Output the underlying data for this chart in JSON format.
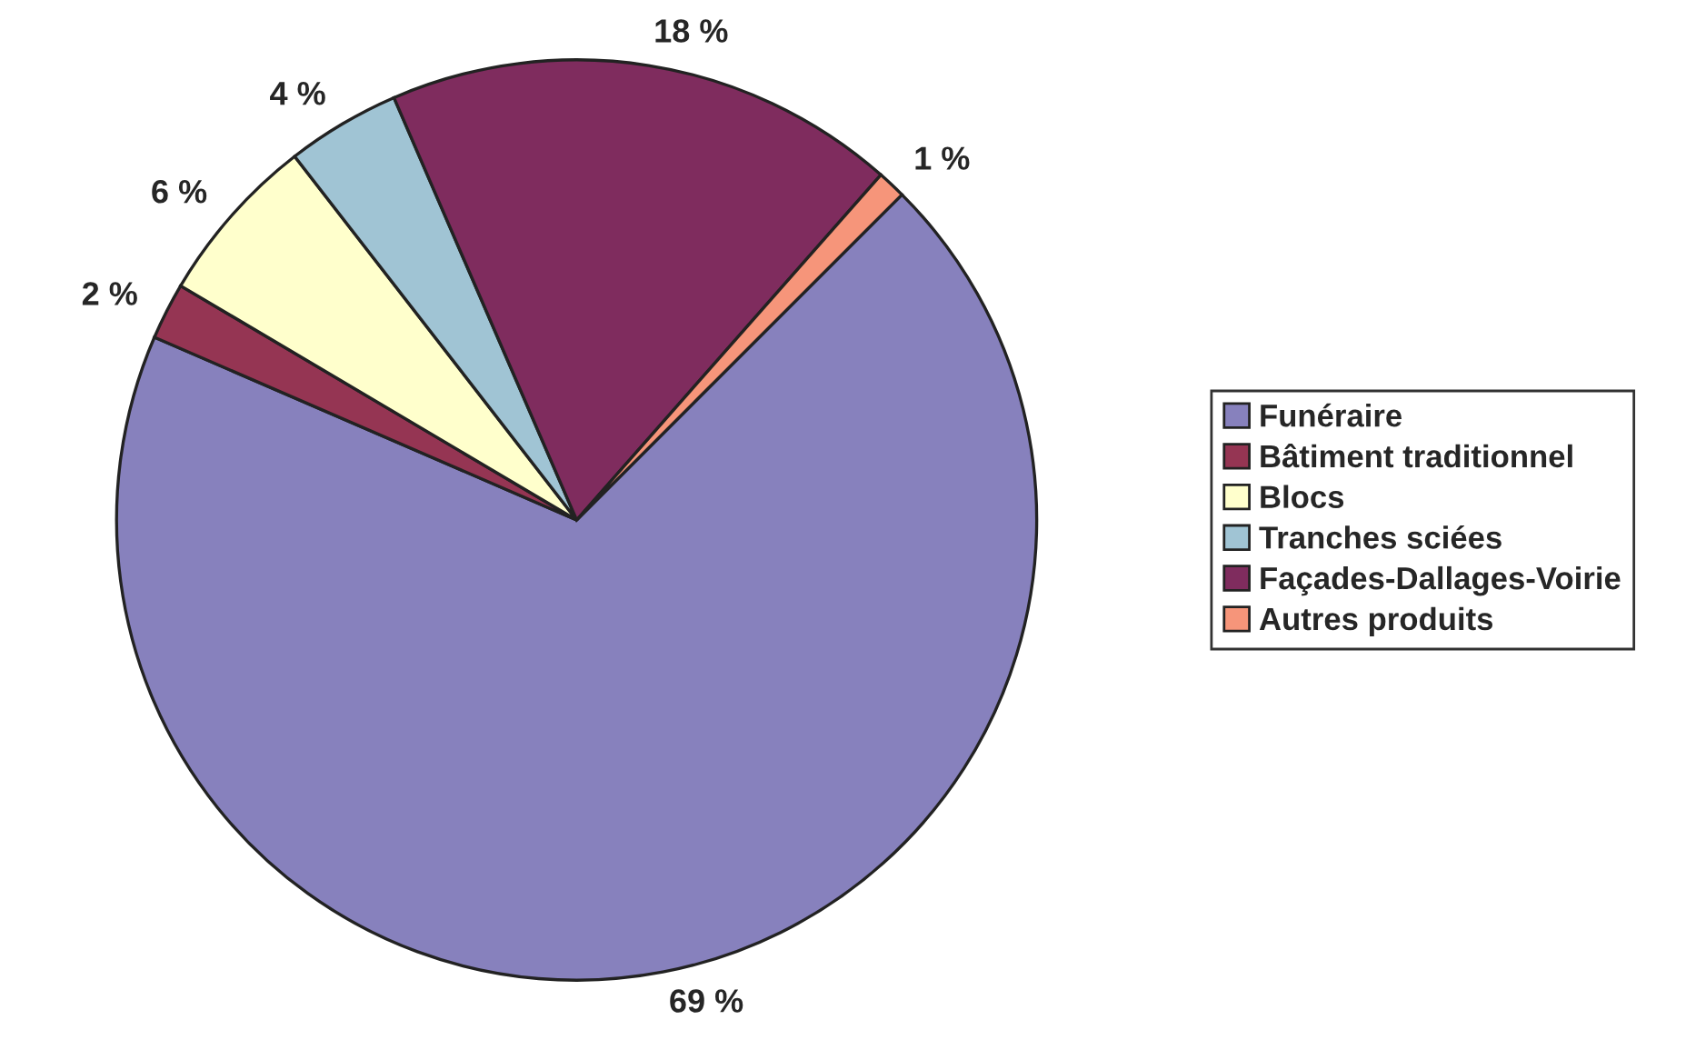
{
  "chart_data": {
    "type": "pie",
    "categories": [
      "Funéraire",
      "Bâtiment traditionnel",
      "Blocs",
      "Tranches sciées",
      "Façades-Dallages-Voirie",
      "Autres produits"
    ],
    "values": [
      69,
      2,
      6,
      4,
      18,
      1
    ],
    "value_labels": [
      "69 %",
      "2 %",
      "6 %",
      "4 %",
      "18 %",
      "1 %"
    ],
    "colors": [
      "#8781bd",
      "#953553",
      "#ffffcc",
      "#a0c4d4",
      "#7f2c5e",
      "#f6957a"
    ],
    "legend": "right"
  }
}
